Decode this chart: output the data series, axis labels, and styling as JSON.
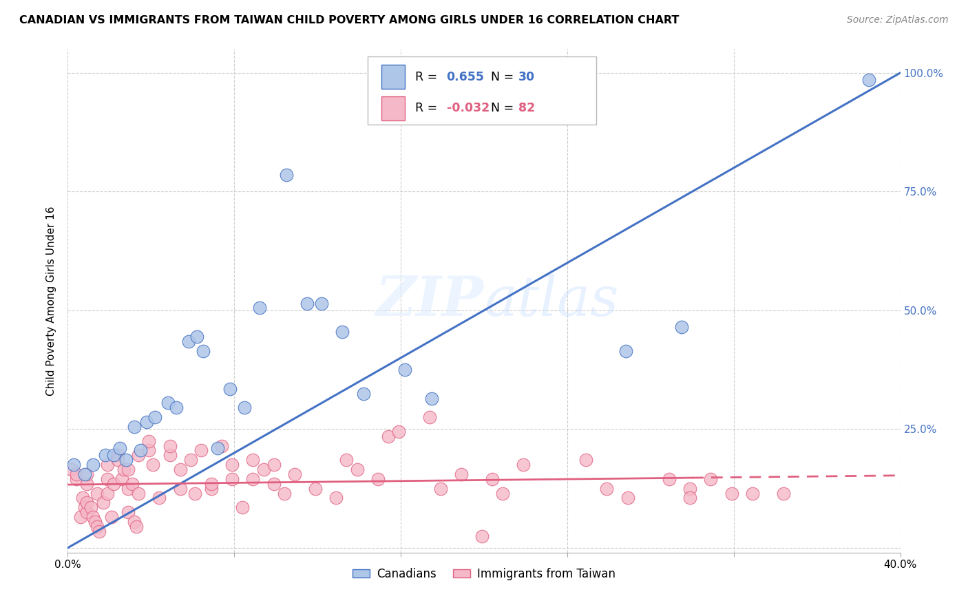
{
  "title": "CANADIAN VS IMMIGRANTS FROM TAIWAN CHILD POVERTY AMONG GIRLS UNDER 16 CORRELATION CHART",
  "source": "Source: ZipAtlas.com",
  "ylabel": "Child Poverty Among Girls Under 16",
  "xlim": [
    0.0,
    0.4
  ],
  "ylim": [
    -0.01,
    1.05
  ],
  "ytick_values": [
    0.0,
    0.25,
    0.5,
    0.75,
    1.0
  ],
  "ytick_labels_right": [
    "",
    "25.0%",
    "50.0%",
    "75.0%",
    "100.0%"
  ],
  "xtick_values": [
    0.0,
    0.08,
    0.16,
    0.24,
    0.32,
    0.4
  ],
  "xtick_labels": [
    "0.0%",
    "",
    "",
    "",
    "",
    "40.0%"
  ],
  "legend_label1": "Canadians",
  "legend_label2": "Immigrants from Taiwan",
  "r1": 0.655,
  "n1": 30,
  "r2": -0.032,
  "n2": 82,
  "canadian_color": "#aec6e8",
  "taiwan_color": "#f5b8c8",
  "line1_color": "#4472c4",
  "line2_color": "#e06080",
  "background_color": "#ffffff",
  "canadians_x": [
    0.003,
    0.008,
    0.012,
    0.018,
    0.022,
    0.025,
    0.028,
    0.032,
    0.035,
    0.038,
    0.042,
    0.048,
    0.052,
    0.058,
    0.062,
    0.065,
    0.072,
    0.078,
    0.085,
    0.092,
    0.105,
    0.115,
    0.122,
    0.132,
    0.142,
    0.162,
    0.175,
    0.268,
    0.295,
    0.385
  ],
  "canadians_y": [
    0.175,
    0.155,
    0.175,
    0.195,
    0.195,
    0.21,
    0.185,
    0.255,
    0.205,
    0.265,
    0.275,
    0.305,
    0.295,
    0.435,
    0.445,
    0.415,
    0.21,
    0.335,
    0.295,
    0.505,
    0.785,
    0.515,
    0.515,
    0.455,
    0.325,
    0.375,
    0.315,
    0.415,
    0.465,
    0.985
  ],
  "taiwan_x": [
    0.002,
    0.004,
    0.004,
    0.006,
    0.007,
    0.008,
    0.009,
    0.009,
    0.009,
    0.009,
    0.011,
    0.012,
    0.013,
    0.014,
    0.014,
    0.015,
    0.017,
    0.019,
    0.019,
    0.019,
    0.021,
    0.022,
    0.024,
    0.024,
    0.026,
    0.027,
    0.029,
    0.029,
    0.029,
    0.031,
    0.032,
    0.033,
    0.034,
    0.034,
    0.039,
    0.039,
    0.041,
    0.044,
    0.049,
    0.049,
    0.054,
    0.054,
    0.059,
    0.061,
    0.064,
    0.069,
    0.069,
    0.074,
    0.079,
    0.079,
    0.084,
    0.089,
    0.089,
    0.094,
    0.099,
    0.099,
    0.104,
    0.109,
    0.119,
    0.129,
    0.134,
    0.139,
    0.149,
    0.154,
    0.159,
    0.174,
    0.179,
    0.189,
    0.199,
    0.204,
    0.209,
    0.219,
    0.249,
    0.259,
    0.269,
    0.289,
    0.299,
    0.299,
    0.309,
    0.319,
    0.329,
    0.344
  ],
  "taiwan_y": [
    0.165,
    0.145,
    0.155,
    0.065,
    0.105,
    0.085,
    0.075,
    0.095,
    0.135,
    0.155,
    0.085,
    0.065,
    0.055,
    0.115,
    0.045,
    0.035,
    0.095,
    0.115,
    0.145,
    0.175,
    0.065,
    0.135,
    0.195,
    0.185,
    0.145,
    0.165,
    0.075,
    0.125,
    0.165,
    0.135,
    0.055,
    0.045,
    0.115,
    0.195,
    0.205,
    0.225,
    0.175,
    0.105,
    0.195,
    0.215,
    0.125,
    0.165,
    0.185,
    0.115,
    0.205,
    0.125,
    0.135,
    0.215,
    0.145,
    0.175,
    0.085,
    0.145,
    0.185,
    0.165,
    0.135,
    0.175,
    0.115,
    0.155,
    0.125,
    0.105,
    0.185,
    0.165,
    0.145,
    0.235,
    0.245,
    0.275,
    0.125,
    0.155,
    0.025,
    0.145,
    0.115,
    0.175,
    0.185,
    0.125,
    0.105,
    0.145,
    0.125,
    0.105,
    0.145,
    0.115,
    0.115,
    0.115
  ]
}
